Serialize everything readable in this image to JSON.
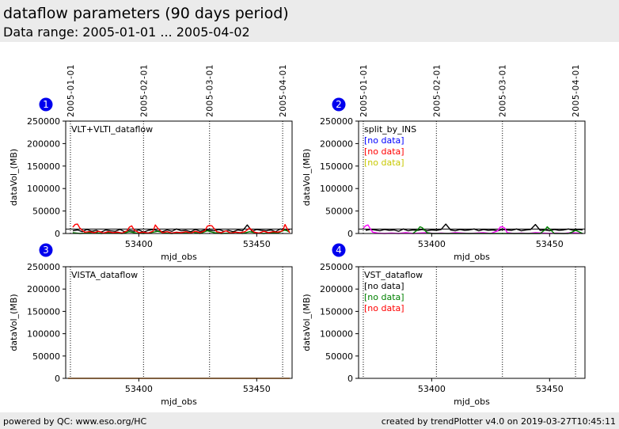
{
  "page": {
    "title": "dataflow parameters (90 days period)",
    "subtitle": "Data range: 2005-01-01 ... 2005-04-02",
    "footer_left": "powered by QC: www.eso.org/HC",
    "footer_right": "created by trendPlotter v4.0 on 2019-03-27T10:45:11"
  },
  "chart_data": [
    {
      "type": "line",
      "number": "1",
      "title": "VLT+VLTI_dataflow",
      "xlabel": "mjd_obs",
      "ylabel": "dataVol_(MB)",
      "xlim": [
        53369,
        53465
      ],
      "ylim": [
        0,
        250000
      ],
      "xticks": [
        53400,
        53450
      ],
      "yticks": [
        0,
        50000,
        100000,
        150000,
        200000,
        250000
      ],
      "date_markers": [
        {
          "x": 53371,
          "label": "2005-01-01"
        },
        {
          "x": 53402,
          "label": "2005-02-01"
        },
        {
          "x": 53430,
          "label": "2005-03-01"
        },
        {
          "x": 53461,
          "label": "2005-04-01"
        }
      ],
      "reference_line": 10000,
      "legend": [],
      "series": [
        {
          "color": "#000000",
          "x": [
            53372,
            53374,
            53376,
            53378,
            53380,
            53382,
            53384,
            53386,
            53388,
            53390,
            53392,
            53394,
            53396,
            53398,
            53400,
            53402,
            53404,
            53406,
            53408,
            53410,
            53412,
            53414,
            53416,
            53418,
            53420,
            53422,
            53424,
            53426,
            53428,
            53430,
            53432,
            53434,
            53436,
            53438,
            53440,
            53442,
            53444,
            53446,
            53448,
            53450,
            53452,
            53454,
            53456,
            53458,
            53460,
            53462,
            53464
          ],
          "y": [
            6000,
            8000,
            4000,
            9000,
            5000,
            7000,
            3000,
            8000,
            6000,
            5000,
            9000,
            4000,
            7000,
            5000,
            8000,
            3000,
            7000,
            9000,
            6000,
            4000,
            8000,
            5000,
            10000,
            6000,
            7000,
            4000,
            9000,
            5000,
            8000,
            7000,
            6000,
            9000,
            5000,
            7000,
            4000,
            8000,
            6000,
            19000,
            5000,
            9000,
            7000,
            6000,
            8000,
            4000,
            10000,
            7000,
            9000
          ]
        },
        {
          "color": "#008000",
          "x": [
            53372,
            53375,
            53378,
            53381,
            53384,
            53387,
            53390,
            53393,
            53396,
            53399,
            53402,
            53405,
            53408,
            53411,
            53414,
            53417,
            53420,
            53423,
            53426,
            53429,
            53432,
            53435,
            53438,
            53441,
            53444,
            53447,
            53450,
            53453,
            53456,
            53459,
            53462,
            53464
          ],
          "y": [
            2000,
            0,
            1000,
            3000,
            0,
            2000,
            1000,
            0,
            4000,
            1000,
            0,
            2000,
            5000,
            1000,
            0,
            2000,
            1000,
            3000,
            0,
            6000,
            2000,
            0,
            1000,
            3000,
            0,
            4000,
            1000,
            0,
            2000,
            1000,
            8000,
            3000
          ]
        },
        {
          "color": "#ff0000",
          "x": [
            53372,
            53373,
            53374,
            53375,
            53377,
            53379,
            53381,
            53383,
            53385,
            53387,
            53389,
            53391,
            53393,
            53395,
            53396,
            53397,
            53398,
            53400,
            53402,
            53404,
            53406,
            53407,
            53408,
            53410,
            53412,
            53414,
            53416,
            53418,
            53420,
            53422,
            53424,
            53426,
            53428,
            53429,
            53430,
            53431,
            53433,
            53435,
            53437,
            53439,
            53441,
            53443,
            53445,
            53447,
            53449,
            53451,
            53453,
            53455,
            53457,
            53459,
            53461,
            53462,
            53463,
            53464
          ],
          "y": [
            14000,
            20000,
            21000,
            12000,
            3000,
            4000,
            2000,
            5000,
            1000,
            4000,
            2000,
            3000,
            1000,
            6000,
            14000,
            17000,
            8000,
            2000,
            3000,
            1000,
            5000,
            19000,
            12000,
            2000,
            4000,
            1000,
            3000,
            2000,
            4000,
            1000,
            5000,
            2000,
            6000,
            16000,
            18000,
            17000,
            4000,
            2000,
            6000,
            1000,
            3000,
            2000,
            4000,
            12000,
            3000,
            1000,
            5000,
            2000,
            4000,
            3000,
            6000,
            20000,
            10000,
            2000
          ]
        }
      ]
    },
    {
      "type": "line",
      "number": "2",
      "title": "split_by_INS",
      "xlabel": "mjd_obs",
      "ylabel": "dataVol_(MB)",
      "xlim": [
        53369,
        53465
      ],
      "ylim": [
        0,
        250000
      ],
      "xticks": [
        53400,
        53450
      ],
      "yticks": [
        0,
        50000,
        100000,
        150000,
        200000,
        250000
      ],
      "date_markers": [
        {
          "x": 53371,
          "label": "2005-01-01"
        },
        {
          "x": 53402,
          "label": "2005-02-01"
        },
        {
          "x": 53430,
          "label": "2005-03-01"
        },
        {
          "x": 53461,
          "label": "2005-04-01"
        }
      ],
      "reference_line": 10000,
      "legend": [
        {
          "label": "[no data]",
          "color": "#0000ff"
        },
        {
          "label": "[no data]",
          "color": "#ff0000"
        },
        {
          "label": "[no data]",
          "color": "#c8c800"
        }
      ],
      "series": [
        {
          "color": "#000000",
          "x": [
            53372,
            53374,
            53376,
            53378,
            53380,
            53382,
            53384,
            53386,
            53388,
            53390,
            53392,
            53394,
            53396,
            53398,
            53400,
            53402,
            53404,
            53406,
            53408,
            53410,
            53412,
            53414,
            53416,
            53418,
            53420,
            53422,
            53424,
            53426,
            53428,
            53430,
            53432,
            53434,
            53436,
            53438,
            53440,
            53442,
            53444,
            53446,
            53448,
            53450,
            53452,
            53454,
            53456,
            53458,
            53460,
            53462,
            53464
          ],
          "y": [
            7000,
            9000,
            8000,
            6000,
            9000,
            7000,
            8000,
            5000,
            10000,
            6000,
            8000,
            7000,
            9000,
            6000,
            8000,
            7000,
            9000,
            21000,
            8000,
            6000,
            9000,
            7000,
            8000,
            10000,
            6000,
            9000,
            7000,
            8000,
            6000,
            9000,
            8000,
            7000,
            10000,
            6000,
            8000,
            9000,
            20000,
            7000,
            8000,
            6000,
            9000,
            7000,
            8000,
            10000,
            7000,
            9000,
            8000
          ]
        },
        {
          "color": "#ff00ff",
          "x": [
            53371,
            53372,
            53373,
            53374,
            53375,
            53377,
            53380,
            53383,
            53386,
            53389,
            53392,
            53395,
            53398,
            53401,
            53404,
            53407,
            53410,
            53413,
            53416,
            53419,
            53422,
            53425,
            53428,
            53429,
            53430,
            53431,
            53432,
            53435,
            53438,
            53441,
            53444,
            53447,
            53450,
            53453,
            53456,
            53459,
            53462,
            53464
          ],
          "y": [
            12000,
            17000,
            19000,
            10000,
            3000,
            1000,
            0,
            1000,
            0,
            2000,
            0,
            1000,
            2000,
            0,
            1000,
            0,
            2000,
            1000,
            0,
            1000,
            2000,
            0,
            6000,
            14000,
            15000,
            12000,
            2000,
            0,
            1000,
            0,
            2000,
            1000,
            0,
            1000,
            0,
            2000,
            1000,
            0
          ]
        },
        {
          "color": "#008000",
          "x": [
            53392,
            53394,
            53395,
            53396,
            53398,
            53400,
            53446,
            53448,
            53449,
            53450,
            53452,
            53458,
            53460,
            53461,
            53462,
            53464
          ],
          "y": [
            0,
            8000,
            15000,
            13000,
            2000,
            0,
            0,
            8000,
            15000,
            10000,
            0,
            0,
            4000,
            7000,
            5000,
            0
          ]
        }
      ]
    },
    {
      "type": "line",
      "number": "3",
      "title": "VISTA_dataflow",
      "xlabel": "mjd_obs",
      "ylabel": "dataVol_(MB)",
      "xlim": [
        53369,
        53465
      ],
      "ylim": [
        0,
        250000
      ],
      "xticks": [
        53400,
        53450
      ],
      "yticks": [
        0,
        50000,
        100000,
        150000,
        200000,
        250000
      ],
      "date_markers": [
        {
          "x": 53371,
          "label": ""
        },
        {
          "x": 53402,
          "label": ""
        },
        {
          "x": 53430,
          "label": ""
        },
        {
          "x": 53461,
          "label": ""
        }
      ],
      "reference_line": null,
      "legend": [],
      "series": [
        {
          "color": "#ff8000",
          "x": [
            53370,
            53464
          ],
          "y": [
            0,
            0
          ]
        }
      ]
    },
    {
      "type": "line",
      "number": "4",
      "title": "VST_dataflow",
      "xlabel": "mjd_obs",
      "ylabel": "dataVol_(MB)",
      "xlim": [
        53369,
        53465
      ],
      "ylim": [
        0,
        250000
      ],
      "xticks": [
        53400,
        53450
      ],
      "yticks": [
        0,
        50000,
        100000,
        150000,
        200000,
        250000
      ],
      "date_markers": [
        {
          "x": 53371,
          "label": ""
        },
        {
          "x": 53402,
          "label": ""
        },
        {
          "x": 53430,
          "label": ""
        },
        {
          "x": 53461,
          "label": ""
        }
      ],
      "reference_line": null,
      "legend": [
        {
          "label": "[no data]",
          "color": "#000000"
        },
        {
          "label": "[no data]",
          "color": "#008000"
        },
        {
          "label": "[no data]",
          "color": "#ff0000"
        }
      ],
      "series": []
    }
  ]
}
